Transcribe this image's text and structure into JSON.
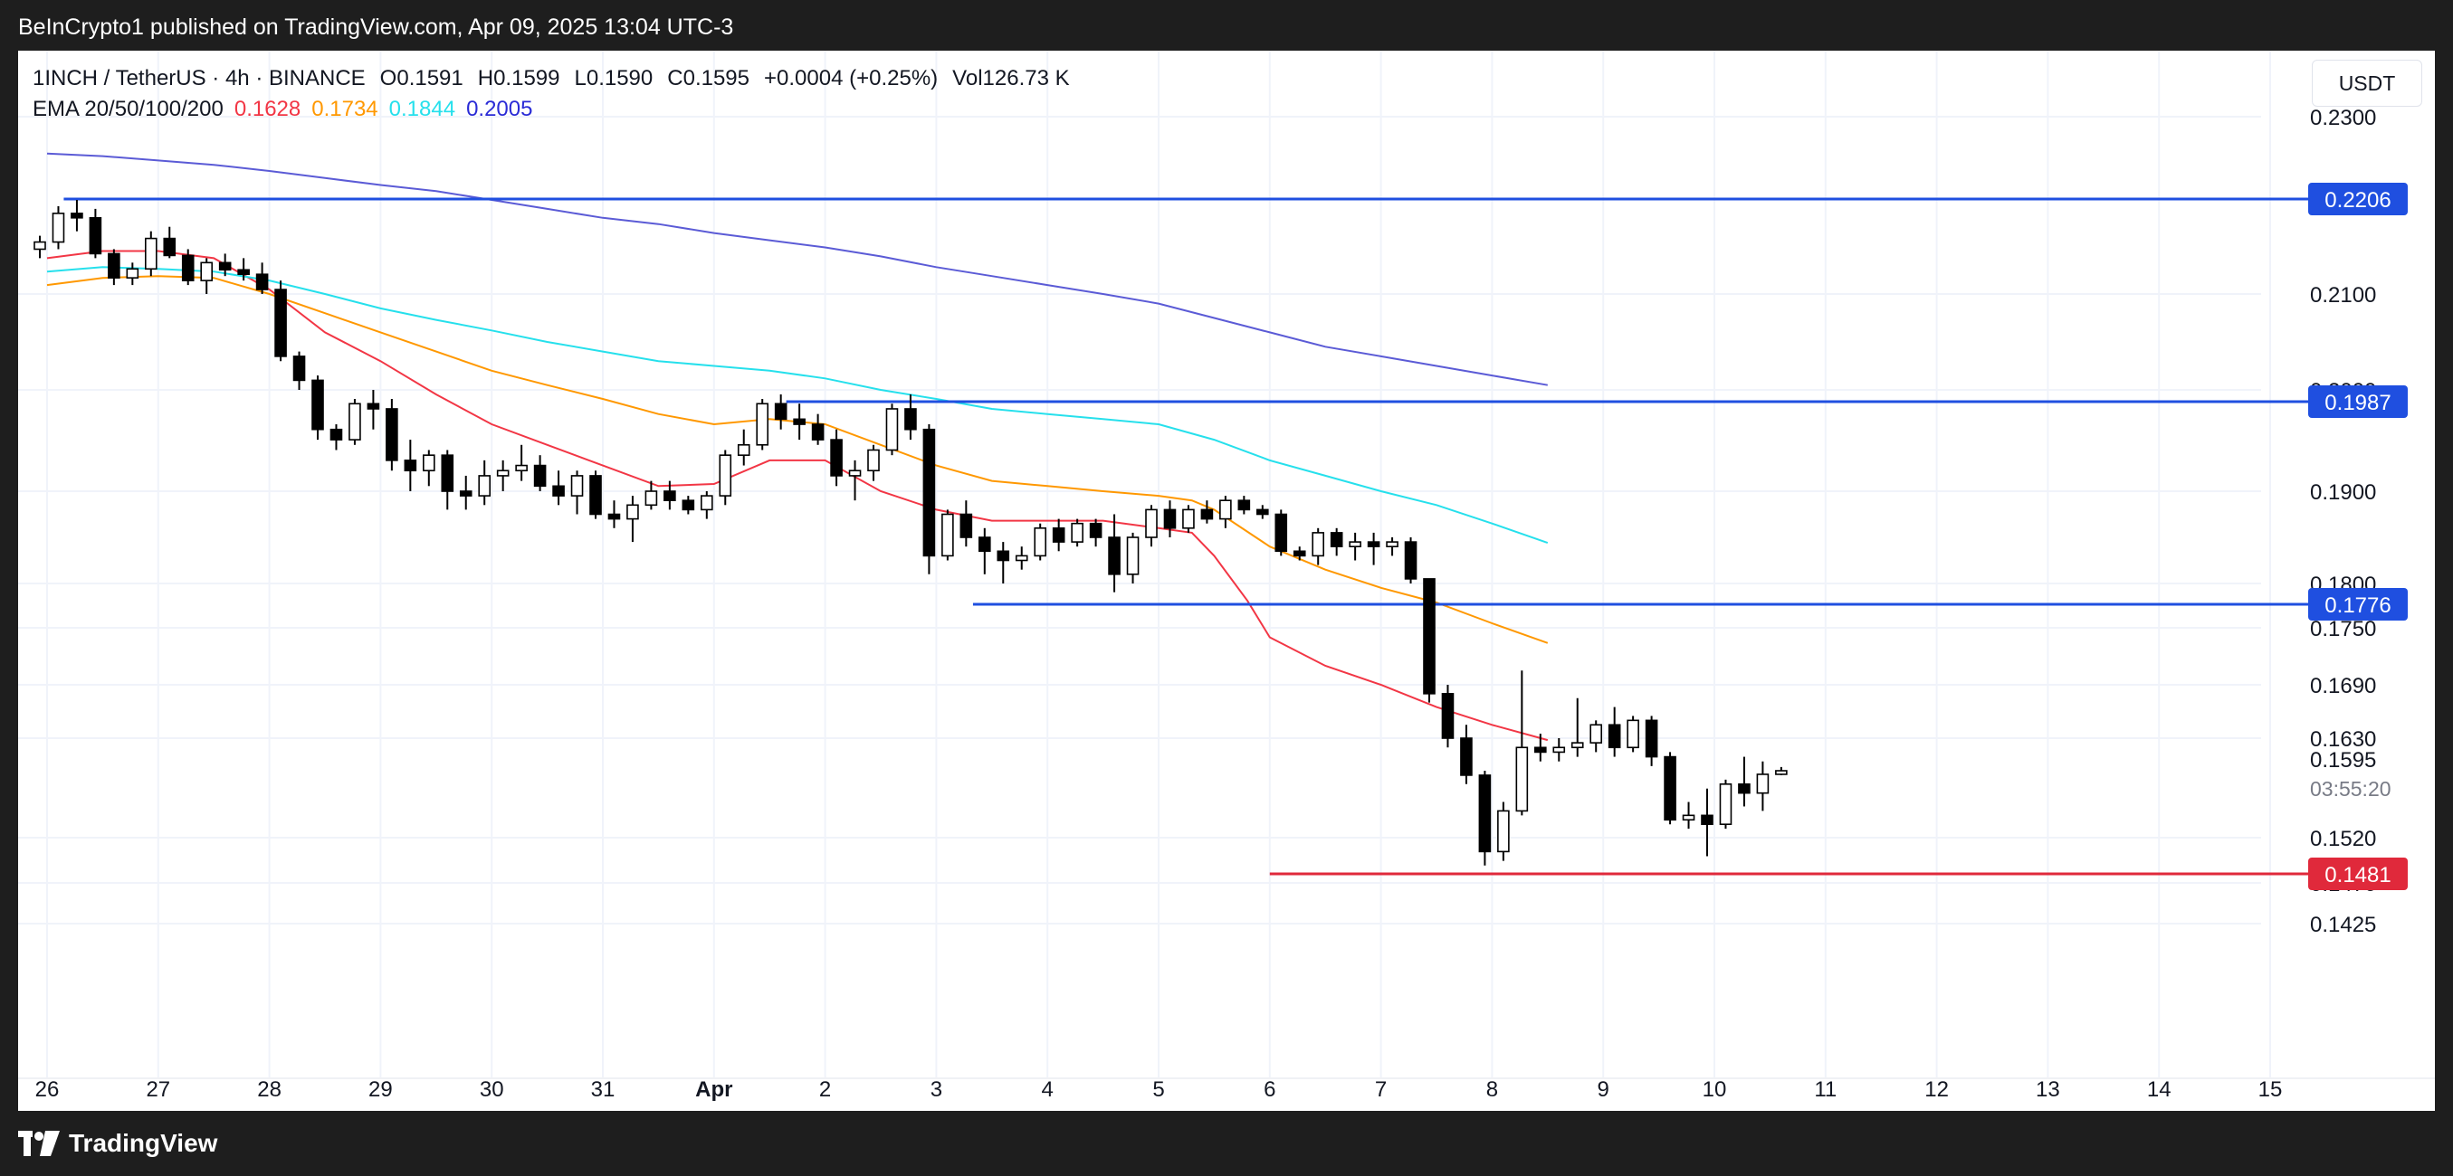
{
  "banner": {
    "text": "BeInCrypto1 published on TradingView.com, Apr 09, 2025 13:04 UTC-3"
  },
  "legend": {
    "symbol": "1INCH / TetherUS · 4h · BINANCE",
    "open": "O0.1591",
    "high": "H0.1599",
    "low": "L0.1590",
    "close": "C0.1595",
    "change": "+0.0004 (+0.25%)",
    "volume": "Vol126.73 K",
    "ema_label": "EMA 20/50/100/200",
    "ema_values": [
      {
        "text": "0.1628",
        "color": "#f23645"
      },
      {
        "text": "0.1734",
        "color": "#ff9800"
      },
      {
        "text": "0.1844",
        "color": "#26e0ec"
      },
      {
        "text": "0.2005",
        "color": "#2a2bd6"
      }
    ]
  },
  "currency_button": "USDT",
  "footer": {
    "brand": "TradingView"
  },
  "colors": {
    "ema20": "#f23645",
    "ema50": "#ff9800",
    "ema100": "#26e0ec",
    "ema200": "#5b5bd6",
    "support_resistance": "#1f4fe0",
    "support_low": "#e0293b",
    "up_candle_fill": "#ffffff",
    "down_candle_fill": "#000000"
  },
  "chart_data": {
    "type": "candlestick",
    "timeframe": "4h",
    "x_tick_labels": [
      "26",
      "27",
      "28",
      "29",
      "30",
      "31",
      "Apr",
      "2",
      "3",
      "4",
      "5",
      "6",
      "7",
      "8",
      "9",
      "10",
      "11",
      "12",
      "13",
      "14",
      "15"
    ],
    "y_axis_labels": [
      "0.2300",
      "0.2100",
      "0.2000",
      "0.1900",
      "0.1800",
      "0.1750",
      "0.1690",
      "0.1630",
      "0.1520",
      "0.1470",
      "0.1425"
    ],
    "price_tag": {
      "value": "0.1595",
      "countdown": "03:55:20"
    },
    "horizontal_levels": [
      {
        "value": 0.2206,
        "label": "0.2206",
        "color": "#1f4fe0",
        "from_day": 26.15
      },
      {
        "value": 0.1987,
        "label": "0.1987",
        "color": "#1f4fe0",
        "from_day": 32.65
      },
      {
        "value": 0.1776,
        "label": "0.1776",
        "color": "#1f4fe0",
        "from_day": 34.33
      },
      {
        "value": 0.1481,
        "label": "0.1481",
        "color": "#e0293b",
        "from_day": 37.0
      }
    ],
    "candles": [
      [
        0.215,
        0.2165,
        0.214,
        0.2158
      ],
      [
        0.2158,
        0.2198,
        0.215,
        0.219
      ],
      [
        0.219,
        0.2205,
        0.217,
        0.2185
      ],
      [
        0.2185,
        0.2195,
        0.214,
        0.2145
      ],
      [
        0.2145,
        0.215,
        0.211,
        0.2118
      ],
      [
        0.2118,
        0.2135,
        0.211,
        0.2128
      ],
      [
        0.2128,
        0.217,
        0.212,
        0.2162
      ],
      [
        0.2162,
        0.2175,
        0.214,
        0.2143
      ],
      [
        0.2143,
        0.215,
        0.211,
        0.2115
      ],
      [
        0.2115,
        0.214,
        0.21,
        0.2135
      ],
      [
        0.2135,
        0.2145,
        0.212,
        0.2127
      ],
      [
        0.2127,
        0.214,
        0.2115,
        0.2122
      ],
      [
        0.2122,
        0.2135,
        0.21,
        0.2105
      ],
      [
        0.2105,
        0.2115,
        0.203,
        0.2035
      ],
      [
        0.2035,
        0.204,
        0.2,
        0.201
      ],
      [
        0.201,
        0.2015,
        0.195,
        0.196
      ],
      [
        0.196,
        0.1965,
        0.194,
        0.195
      ],
      [
        0.195,
        0.199,
        0.1945,
        0.1985
      ],
      [
        0.1985,
        0.2,
        0.196,
        0.198
      ],
      [
        0.198,
        0.199,
        0.192,
        0.193
      ],
      [
        0.193,
        0.195,
        0.19,
        0.192
      ],
      [
        0.192,
        0.194,
        0.1905,
        0.1935
      ],
      [
        0.1935,
        0.194,
        0.188,
        0.19
      ],
      [
        0.19,
        0.1915,
        0.188,
        0.1895
      ],
      [
        0.1895,
        0.193,
        0.1885,
        0.1915
      ],
      [
        0.1915,
        0.193,
        0.19,
        0.192
      ],
      [
        0.192,
        0.1945,
        0.191,
        0.1925
      ],
      [
        0.1925,
        0.1935,
        0.19,
        0.1905
      ],
      [
        0.1905,
        0.192,
        0.1885,
        0.1895
      ],
      [
        0.1895,
        0.192,
        0.1875,
        0.1915
      ],
      [
        0.1915,
        0.192,
        0.187,
        0.1875
      ],
      [
        0.1875,
        0.189,
        0.186,
        0.187
      ],
      [
        0.187,
        0.1895,
        0.1845,
        0.1885
      ],
      [
        0.1885,
        0.191,
        0.188,
        0.19
      ],
      [
        0.19,
        0.191,
        0.188,
        0.189
      ],
      [
        0.189,
        0.1895,
        0.1875,
        0.188
      ],
      [
        0.188,
        0.19,
        0.187,
        0.1895
      ],
      [
        0.1895,
        0.194,
        0.1885,
        0.1935
      ],
      [
        0.1935,
        0.196,
        0.1925,
        0.1945
      ],
      [
        0.1945,
        0.199,
        0.194,
        0.1985
      ],
      [
        0.1985,
        0.1995,
        0.196,
        0.197
      ],
      [
        0.197,
        0.1985,
        0.195,
        0.1965
      ],
      [
        0.1965,
        0.1975,
        0.1945,
        0.195
      ],
      [
        0.195,
        0.196,
        0.1905,
        0.1915
      ],
      [
        0.1915,
        0.193,
        0.189,
        0.192
      ],
      [
        0.192,
        0.1945,
        0.191,
        0.194
      ],
      [
        0.194,
        0.1985,
        0.1935,
        0.198
      ],
      [
        0.198,
        0.1995,
        0.195,
        0.196
      ],
      [
        0.196,
        0.1965,
        0.181,
        0.183
      ],
      [
        0.183,
        0.188,
        0.1825,
        0.1875
      ],
      [
        0.1875,
        0.189,
        0.184,
        0.185
      ],
      [
        0.185,
        0.186,
        0.181,
        0.1835
      ],
      [
        0.1835,
        0.1845,
        0.18,
        0.1825
      ],
      [
        0.1825,
        0.184,
        0.1815,
        0.183
      ],
      [
        0.183,
        0.1865,
        0.1825,
        0.186
      ],
      [
        0.186,
        0.187,
        0.1835,
        0.1845
      ],
      [
        0.1845,
        0.187,
        0.184,
        0.1865
      ],
      [
        0.1865,
        0.187,
        0.184,
        0.185
      ],
      [
        0.185,
        0.1875,
        0.179,
        0.181
      ],
      [
        0.181,
        0.1855,
        0.18,
        0.185
      ],
      [
        0.185,
        0.1885,
        0.184,
        0.188
      ],
      [
        0.188,
        0.189,
        0.185,
        0.186
      ],
      [
        0.186,
        0.1885,
        0.1855,
        0.188
      ],
      [
        0.188,
        0.189,
        0.1865,
        0.187
      ],
      [
        0.187,
        0.1895,
        0.186,
        0.189
      ],
      [
        0.189,
        0.1895,
        0.1875,
        0.188
      ],
      [
        0.188,
        0.1885,
        0.187,
        0.1875
      ],
      [
        0.1875,
        0.188,
        0.183,
        0.1835
      ],
      [
        0.1835,
        0.184,
        0.1825,
        0.183
      ],
      [
        0.183,
        0.186,
        0.182,
        0.1855
      ],
      [
        0.1855,
        0.186,
        0.183,
        0.184
      ],
      [
        0.184,
        0.1855,
        0.1825,
        0.1845
      ],
      [
        0.1845,
        0.1855,
        0.182,
        0.184
      ],
      [
        0.184,
        0.185,
        0.183,
        0.1845
      ],
      [
        0.1845,
        0.185,
        0.18,
        0.1805
      ],
      [
        0.1805,
        0.1805,
        0.167,
        0.168
      ],
      [
        0.168,
        0.169,
        0.162,
        0.163
      ],
      [
        0.163,
        0.1645,
        0.158,
        0.159
      ],
      [
        0.159,
        0.1595,
        0.149,
        0.1505
      ],
      [
        0.1505,
        0.156,
        0.1495,
        0.155
      ],
      [
        0.155,
        0.1705,
        0.1545,
        0.162
      ],
      [
        0.162,
        0.1635,
        0.1605,
        0.1615
      ],
      [
        0.1615,
        0.163,
        0.1605,
        0.162
      ],
      [
        0.162,
        0.1675,
        0.161,
        0.1625
      ],
      [
        0.1625,
        0.165,
        0.1615,
        0.1645
      ],
      [
        0.1645,
        0.1665,
        0.161,
        0.162
      ],
      [
        0.162,
        0.1655,
        0.1615,
        0.165
      ],
      [
        0.165,
        0.1655,
        0.16,
        0.161
      ],
      [
        0.161,
        0.1615,
        0.1535,
        0.154
      ],
      [
        0.154,
        0.156,
        0.153,
        0.1545
      ],
      [
        0.1545,
        0.1575,
        0.15,
        0.1535
      ],
      [
        0.1535,
        0.1585,
        0.153,
        0.158
      ],
      [
        0.158,
        0.161,
        0.1555,
        0.157
      ],
      [
        0.157,
        0.1605,
        0.155,
        0.1591
      ],
      [
        0.1591,
        0.1599,
        0.159,
        0.1595
      ]
    ],
    "ema": {
      "ema20": [
        [
          26.0,
          0.214
        ],
        [
          26.5,
          0.2148
        ],
        [
          27.0,
          0.2148
        ],
        [
          27.5,
          0.214
        ],
        [
          28.0,
          0.2105
        ],
        [
          28.5,
          0.206
        ],
        [
          29.0,
          0.203
        ],
        [
          29.5,
          0.1995
        ],
        [
          30.0,
          0.1965
        ],
        [
          30.5,
          0.1945
        ],
        [
          31.0,
          0.1925
        ],
        [
          31.5,
          0.1905
        ],
        [
          32.0,
          0.1907
        ],
        [
          32.5,
          0.193
        ],
        [
          33.0,
          0.193
        ],
        [
          33.5,
          0.19
        ],
        [
          34.0,
          0.188
        ],
        [
          34.5,
          0.1868
        ],
        [
          35.0,
          0.1868
        ],
        [
          35.5,
          0.1868
        ],
        [
          36.0,
          0.186
        ],
        [
          36.3,
          0.1855
        ],
        [
          36.5,
          0.183
        ],
        [
          36.8,
          0.178
        ],
        [
          37.0,
          0.174
        ],
        [
          37.5,
          0.171
        ],
        [
          38.0,
          0.169
        ],
        [
          38.5,
          0.1665
        ],
        [
          39.0,
          0.1645
        ],
        [
          39.5,
          0.1628
        ]
      ],
      "ema50": [
        [
          26.0,
          0.211
        ],
        [
          26.5,
          0.2118
        ],
        [
          27.0,
          0.212
        ],
        [
          27.5,
          0.2118
        ],
        [
          28.0,
          0.21
        ],
        [
          28.5,
          0.208
        ],
        [
          29.0,
          0.206
        ],
        [
          29.5,
          0.204
        ],
        [
          30.0,
          0.202
        ],
        [
          30.5,
          0.2005
        ],
        [
          31.0,
          0.199
        ],
        [
          31.5,
          0.1975
        ],
        [
          32.0,
          0.1965
        ],
        [
          32.5,
          0.197
        ],
        [
          33.0,
          0.1965
        ],
        [
          33.5,
          0.1945
        ],
        [
          34.0,
          0.1925
        ],
        [
          34.5,
          0.191
        ],
        [
          35.0,
          0.1905
        ],
        [
          35.5,
          0.19
        ],
        [
          36.0,
          0.1895
        ],
        [
          36.3,
          0.189
        ],
        [
          36.5,
          0.188
        ],
        [
          37.0,
          0.184
        ],
        [
          37.5,
          0.1815
        ],
        [
          38.0,
          0.1795
        ],
        [
          38.5,
          0.1778
        ],
        [
          39.0,
          0.1755
        ],
        [
          39.5,
          0.1734
        ]
      ],
      "ema100": [
        [
          26.0,
          0.2125
        ],
        [
          26.5,
          0.213
        ],
        [
          27.0,
          0.2128
        ],
        [
          27.5,
          0.2125
        ],
        [
          28.0,
          0.2115
        ],
        [
          28.5,
          0.21
        ],
        [
          29.0,
          0.2085
        ],
        [
          29.5,
          0.2073
        ],
        [
          30.0,
          0.2062
        ],
        [
          30.5,
          0.205
        ],
        [
          31.0,
          0.204
        ],
        [
          31.5,
          0.203
        ],
        [
          32.0,
          0.2025
        ],
        [
          32.5,
          0.202
        ],
        [
          33.0,
          0.2012
        ],
        [
          33.5,
          0.2
        ],
        [
          34.0,
          0.199
        ],
        [
          34.5,
          0.198
        ],
        [
          35.0,
          0.1975
        ],
        [
          35.5,
          0.197
        ],
        [
          36.0,
          0.1965
        ],
        [
          36.5,
          0.195
        ],
        [
          37.0,
          0.193
        ],
        [
          37.5,
          0.1915
        ],
        [
          38.0,
          0.19
        ],
        [
          38.5,
          0.1885
        ],
        [
          39.0,
          0.1865
        ],
        [
          39.5,
          0.1844
        ]
      ],
      "ema200": [
        [
          26.0,
          0.2258
        ],
        [
          26.5,
          0.2255
        ],
        [
          27.0,
          0.225
        ],
        [
          27.5,
          0.2245
        ],
        [
          28.0,
          0.2238
        ],
        [
          28.5,
          0.223
        ],
        [
          29.0,
          0.2222
        ],
        [
          29.5,
          0.2215
        ],
        [
          30.0,
          0.2205
        ],
        [
          30.5,
          0.2195
        ],
        [
          31.0,
          0.2185
        ],
        [
          31.5,
          0.2178
        ],
        [
          32.0,
          0.2168
        ],
        [
          32.5,
          0.216
        ],
        [
          33.0,
          0.2152
        ],
        [
          33.5,
          0.2142
        ],
        [
          34.0,
          0.213
        ],
        [
          34.5,
          0.212
        ],
        [
          35.0,
          0.211
        ],
        [
          35.5,
          0.21
        ],
        [
          36.0,
          0.209
        ],
        [
          36.5,
          0.2075
        ],
        [
          37.0,
          0.206
        ],
        [
          37.5,
          0.2045
        ],
        [
          38.0,
          0.2035
        ],
        [
          38.5,
          0.2025
        ],
        [
          39.0,
          0.2015
        ],
        [
          39.5,
          0.2005
        ]
      ]
    }
  }
}
